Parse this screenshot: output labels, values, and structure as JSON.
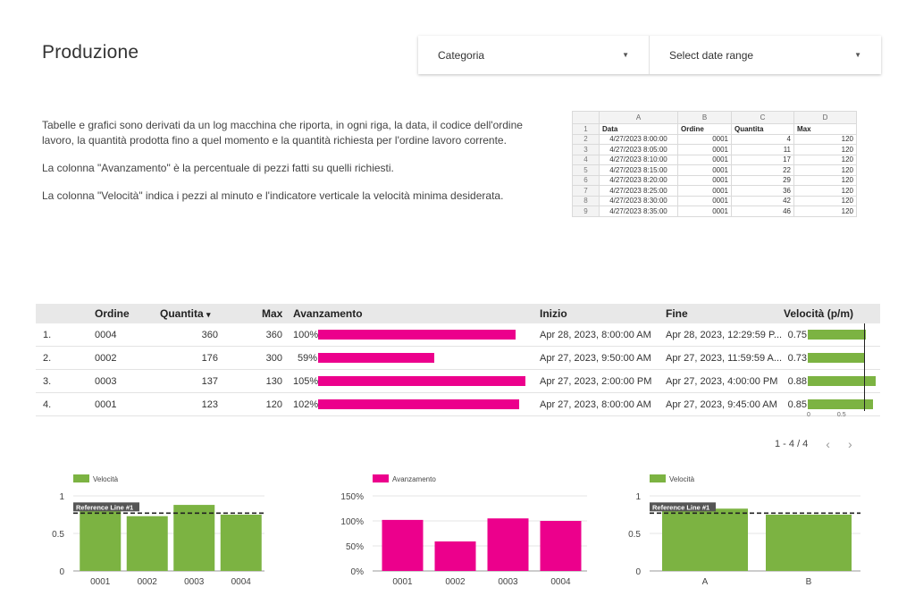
{
  "page": {
    "title": "Produzione"
  },
  "filters": {
    "categoria_label": "Categoria",
    "date_range_label": "Select date range"
  },
  "description": {
    "p1": "Tabelle e grafici sono derivati da un log macchina che riporta, in ogni riga, la data, il codice dell'ordine lavoro, la quantità prodotta fino a quel momento e la quantità richiesta per l'ordine lavoro corrente.",
    "p2": "La colonna \"Avanzamento\" è la percentuale di pezzi fatti su quelli richiesti.",
    "p3": "La colonna \"Velocità\" indica i pezzi al minuto e l'indicatore verticale la velocità minima desiderata."
  },
  "sheet": {
    "columns": [
      "A",
      "B",
      "C",
      "D"
    ],
    "header": [
      "Data",
      "Ordine",
      "Quantita",
      "Max"
    ],
    "rows": [
      [
        "4/27/2023 8:00:00",
        "0001",
        "4",
        "120"
      ],
      [
        "4/27/2023 8:05:00",
        "0001",
        "11",
        "120"
      ],
      [
        "4/27/2023 8:10:00",
        "0001",
        "17",
        "120"
      ],
      [
        "4/27/2023 8:15:00",
        "0001",
        "22",
        "120"
      ],
      [
        "4/27/2023 8:20:00",
        "0001",
        "29",
        "120"
      ],
      [
        "4/27/2023 8:25:00",
        "0001",
        "36",
        "120"
      ],
      [
        "4/27/2023 8:30:00",
        "0001",
        "42",
        "120"
      ],
      [
        "4/27/2023 8:35:00",
        "0001",
        "46",
        "120"
      ]
    ]
  },
  "table": {
    "headers": {
      "ordine": "Ordine",
      "quantita": "Quantita",
      "max": "Max",
      "avanzamento": "Avanzamento",
      "inizio": "Inizio",
      "fine": "Fine",
      "velocita": "Velocità (p/m)"
    },
    "sort_icon": "▾",
    "rows": [
      {
        "idx": "1.",
        "ordine": "0004",
        "quantita": "360",
        "max": "360",
        "avanzamento": "100%",
        "avanzamento_value": 1.0,
        "inizio": "Apr 28, 2023, 8:00:00 AM",
        "fine": "Apr 28, 2023, 12:29:59 P...",
        "velocita": "0.75",
        "velocita_value": 0.75
      },
      {
        "idx": "2.",
        "ordine": "0002",
        "quantita": "176",
        "max": "300",
        "avanzamento": "59%",
        "avanzamento_value": 0.59,
        "inizio": "Apr 27, 2023, 9:50:00 AM",
        "fine": "Apr 27, 2023, 11:59:59 A...",
        "velocita": "0.73",
        "velocita_value": 0.73
      },
      {
        "idx": "3.",
        "ordine": "0003",
        "quantita": "137",
        "max": "130",
        "avanzamento": "105%",
        "avanzamento_value": 1.05,
        "inizio": "Apr 27, 2023, 2:00:00 PM",
        "fine": "Apr 27, 2023, 4:00:00 PM",
        "velocita": "0.88",
        "velocita_value": 0.88
      },
      {
        "idx": "4.",
        "ordine": "0001",
        "quantita": "123",
        "max": "120",
        "avanzamento": "102%",
        "avanzamento_value": 1.02,
        "inizio": "Apr 27, 2023, 8:00:00 AM",
        "fine": "Apr 27, 2023, 9:45:00 AM",
        "velocita": "0.85",
        "velocita_value": 0.85
      }
    ],
    "velocita_axis": [
      "0",
      "0.5"
    ],
    "velocita_reference": 0.8,
    "pager": "1 - 4 / 4"
  },
  "colors": {
    "green": "#7cb342",
    "magenta": "#ec008c"
  },
  "chart_data": [
    {
      "type": "bar",
      "legend": "Velocità",
      "categories": [
        "0001",
        "0002",
        "0003",
        "0004"
      ],
      "values": [
        0.85,
        0.73,
        0.88,
        0.75
      ],
      "ylim": [
        0,
        1
      ],
      "yticks": [
        "0",
        "0.5",
        "1"
      ],
      "reference_line": {
        "label": "Reference Line #1",
        "value": 0.77
      },
      "color": "#7cb342"
    },
    {
      "type": "bar",
      "legend": "Avanzamento",
      "categories": [
        "0001",
        "0002",
        "0003",
        "0004"
      ],
      "values": [
        1.02,
        0.59,
        1.05,
        1.0
      ],
      "ylim": [
        0,
        1.5
      ],
      "yticks": [
        "0%",
        "50%",
        "100%",
        "150%"
      ],
      "color": "#ec008c"
    },
    {
      "type": "bar",
      "legend": "Velocità",
      "categories": [
        "A",
        "B"
      ],
      "values": [
        0.83,
        0.75
      ],
      "ylim": [
        0,
        1
      ],
      "yticks": [
        "0",
        "0.5",
        "1"
      ],
      "reference_line": {
        "label": "Reference Line #1",
        "value": 0.77
      },
      "color": "#7cb342"
    }
  ]
}
